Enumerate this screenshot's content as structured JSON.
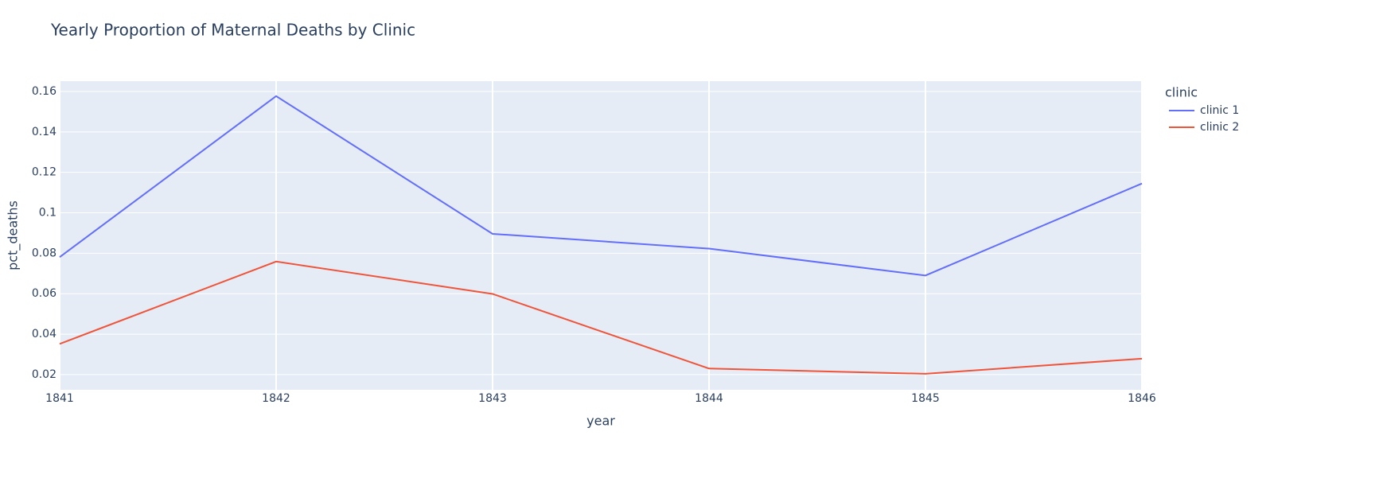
{
  "chart_data": {
    "type": "line",
    "title": "Yearly Proportion of Maternal Deaths by Clinic",
    "x_label": "year",
    "y_label": "pct_deaths",
    "legend_title": "clinic",
    "legend_position": "right",
    "x": [
      1841,
      1842,
      1843,
      1844,
      1845,
      1846
    ],
    "series": [
      {
        "name": "clinic 1",
        "color": "#636efa",
        "values": [
          0.0781,
          0.1577,
          0.0896,
          0.0823,
          0.069,
          0.1145
        ]
      },
      {
        "name": "clinic 2",
        "color": "#ef553b",
        "values": [
          0.0352,
          0.0759,
          0.0599,
          0.023,
          0.0204,
          0.0279
        ]
      }
    ],
    "xlim": [
      1841,
      1846
    ],
    "xticks": [
      1841,
      1842,
      1843,
      1844,
      1845,
      1846
    ],
    "ylim": [
      0.0125,
      0.1651
    ],
    "yticks": [
      0.02,
      0.04,
      0.06,
      0.08,
      0.1,
      0.12,
      0.14,
      0.16
    ],
    "grid": true
  }
}
